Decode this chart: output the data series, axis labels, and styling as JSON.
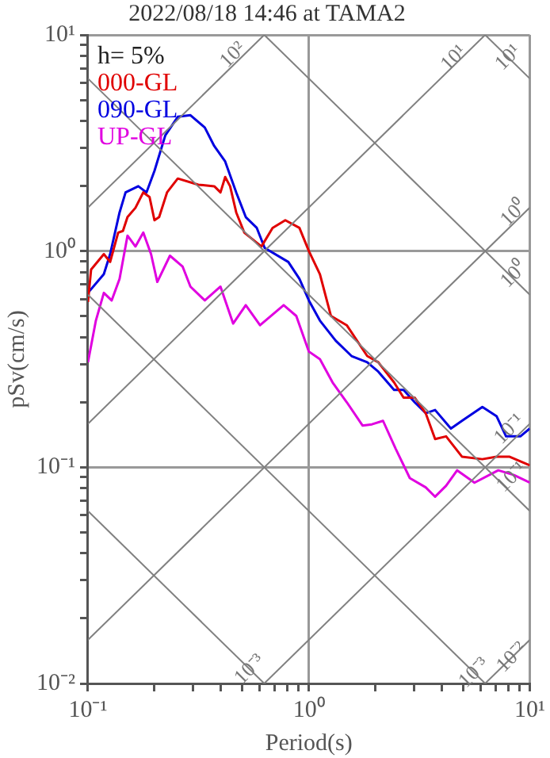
{
  "chart_data": {
    "type": "line",
    "title": "2022/08/18 14:46 at TAMA2",
    "xlabel": "Period(s)",
    "ylabel": "pSv(cm/s)",
    "legend_title": "h= 5%",
    "legend": "top left",
    "log": "xy",
    "grid": true,
    "marker": "none",
    "line_style": "solid",
    "xlim": [
      0.1,
      10
    ],
    "ylim": [
      0.01,
      10
    ],
    "xticks": [
      {
        "value": 0.1,
        "label": "10⁻¹"
      },
      {
        "value": 0.2,
        "label": null
      },
      {
        "value": 0.3,
        "label": null
      },
      {
        "value": 0.4,
        "label": null
      },
      {
        "value": 0.5,
        "label": null
      },
      {
        "value": 0.6,
        "label": null
      },
      {
        "value": 0.7,
        "label": null
      },
      {
        "value": 0.8,
        "label": null
      },
      {
        "value": 0.9,
        "label": null
      },
      {
        "value": 1,
        "label": "10⁰"
      },
      {
        "value": 2,
        "label": null
      },
      {
        "value": 3,
        "label": null
      },
      {
        "value": 4,
        "label": null
      },
      {
        "value": 5,
        "label": null
      },
      {
        "value": 6,
        "label": null
      },
      {
        "value": 7,
        "label": null
      },
      {
        "value": 8,
        "label": null
      },
      {
        "value": 9,
        "label": null
      },
      {
        "value": 10,
        "label": "10¹"
      }
    ],
    "yticks": [
      {
        "value": 0.01,
        "label": "10⁻²"
      },
      {
        "value": 0.02,
        "label": null
      },
      {
        "value": 0.03,
        "label": null
      },
      {
        "value": 0.04,
        "label": null
      },
      {
        "value": 0.05,
        "label": null
      },
      {
        "value": 0.06,
        "label": null
      },
      {
        "value": 0.07,
        "label": null
      },
      {
        "value": 0.08,
        "label": null
      },
      {
        "value": 0.09,
        "label": null
      },
      {
        "value": 0.1,
        "label": "10⁻¹"
      },
      {
        "value": 0.2,
        "label": null
      },
      {
        "value": 0.3,
        "label": null
      },
      {
        "value": 0.4,
        "label": null
      },
      {
        "value": 0.5,
        "label": null
      },
      {
        "value": 0.6,
        "label": null
      },
      {
        "value": 0.7,
        "label": null
      },
      {
        "value": 0.8,
        "label": null
      },
      {
        "value": 0.9,
        "label": null
      },
      {
        "value": 1,
        "label": "10⁰"
      },
      {
        "value": 2,
        "label": null
      },
      {
        "value": 3,
        "label": null
      },
      {
        "value": 4,
        "label": null
      },
      {
        "value": 5,
        "label": null
      },
      {
        "value": 6,
        "label": null
      },
      {
        "value": 7,
        "label": null
      },
      {
        "value": 8,
        "label": null
      },
      {
        "value": 9,
        "label": null
      },
      {
        "value": 10,
        "label": "10¹"
      }
    ],
    "annotations": [
      {
        "text": "10²",
        "x": 0.454,
        "y": 8.07
      },
      {
        "text": "10¹",
        "x": 4.54,
        "y": 7.8
      },
      {
        "text": "10¹",
        "x": 8,
        "y": 7.85
      },
      {
        "text": "10⁰",
        "x": 8.5,
        "y": 1.5
      },
      {
        "text": "10⁰",
        "x": 8.5,
        "y": 0.78
      },
      {
        "text": "10⁻¹",
        "x": 8.1,
        "y": 0.15
      },
      {
        "text": "10⁻¹",
        "x": 8.3,
        "y": 0.09
      },
      {
        "text": "10⁻³",
        "x": 0.54,
        "y": 0.0116
      },
      {
        "text": "10⁻³",
        "x": 5.6,
        "y": 0.0112
      },
      {
        "text": "10⁻²",
        "x": 8.3,
        "y": 0.0132
      }
    ],
    "series": [
      {
        "type": "line",
        "color": "#808080",
        "x": [
          0.1,
          0.628
        ],
        "values": [
          0.0628,
          0.01
        ]
      },
      {
        "type": "line",
        "color": "#808080",
        "x": [
          0.1,
          6.28
        ],
        "values": [
          0.628,
          0.01
        ]
      },
      {
        "type": "line",
        "color": "#808080",
        "x": [
          0.1,
          10
        ],
        "values": [
          6.28,
          0.0628
        ]
      },
      {
        "type": "line",
        "color": "#808080",
        "x": [
          0.628,
          10
        ],
        "values": [
          10,
          0.628
        ]
      },
      {
        "type": "line",
        "color": "#808080",
        "x": [
          6.28,
          10
        ],
        "values": [
          10,
          6.28
        ]
      },
      {
        "type": "line",
        "color": "#808080",
        "x": [
          6.28,
          10
        ],
        "values": [
          0.01,
          0.0159
        ]
      },
      {
        "type": "line",
        "color": "#808080",
        "x": [
          0.628,
          10
        ],
        "values": [
          0.01,
          0.159
        ]
      },
      {
        "type": "line",
        "color": "#808080",
        "x": [
          0.1,
          10
        ],
        "values": [
          0.0159,
          1.59
        ]
      },
      {
        "type": "line",
        "color": "#808080",
        "x": [
          0.1,
          6.28
        ],
        "values": [
          0.159,
          10
        ]
      },
      {
        "type": "line",
        "color": "#808080",
        "x": [
          0.1,
          0.628
        ],
        "values": [
          1.59,
          10
        ]
      },
      {
        "name": "000-GL",
        "color": "#e00000",
        "x": [
          0.1,
          0.1033,
          0.118,
          0.126,
          0.137,
          0.144,
          0.151,
          0.164,
          0.178,
          0.19,
          0.2,
          0.21,
          0.228,
          0.255,
          0.316,
          0.373,
          0.398,
          0.418,
          0.44,
          0.469,
          0.51,
          0.61,
          0.685,
          0.782,
          0.906,
          1.0,
          1.122,
          1.259,
          1.484,
          1.837,
          2.061,
          2.43,
          2.683,
          3.01,
          3.378,
          3.728,
          4.18,
          4.93,
          6.1,
          7.08,
          8.07,
          10
        ],
        "values": [
          0.581,
          0.821,
          0.968,
          0.891,
          1.218,
          1.239,
          1.436,
          1.585,
          1.868,
          1.778,
          1.389,
          1.436,
          1.868,
          2.166,
          2.028,
          1.995,
          1.868,
          2.2,
          1.995,
          1.509,
          1.218,
          1.05,
          1.28,
          1.389,
          1.28,
          1.0,
          0.782,
          0.501,
          0.454,
          0.327,
          0.306,
          0.247,
          0.21,
          0.21,
          0.178,
          0.135,
          0.139,
          0.112,
          0.109,
          0.112,
          0.112,
          0.102
        ]
      },
      {
        "name": "090-GL",
        "color": "#0000e0",
        "x": [
          0.1,
          0.118,
          0.126,
          0.139,
          0.148,
          0.169,
          0.184,
          0.2,
          0.224,
          0.255,
          0.291,
          0.338,
          0.373,
          0.418,
          0.469,
          0.518,
          0.581,
          0.631,
          0.807,
          0.906,
          1.0,
          1.122,
          1.322,
          1.56,
          1.837,
          2.061,
          2.43,
          2.683,
          3.01,
          3.378,
          3.728,
          4.394,
          4.93,
          6.1,
          7.08,
          7.81,
          9.06,
          10
        ],
        "values": [
          0.641,
          0.782,
          0.968,
          1.509,
          1.868,
          1.995,
          1.868,
          2.35,
          3.434,
          4.18,
          4.25,
          3.728,
          3.06,
          2.596,
          1.868,
          1.436,
          1.28,
          1.033,
          0.891,
          0.744,
          0.591,
          0.477,
          0.385,
          0.327,
          0.306,
          0.277,
          0.228,
          0.228,
          0.2,
          0.178,
          0.184,
          0.151,
          0.164,
          0.19,
          0.172,
          0.139,
          0.139,
          0.151
        ]
      },
      {
        "name": "UP-GL",
        "color": "#e000e0",
        "x": [
          0.1,
          0.1086,
          0.118,
          0.128,
          0.139,
          0.151,
          0.164,
          0.178,
          0.193,
          0.206,
          0.235,
          0.268,
          0.291,
          0.338,
          0.398,
          0.454,
          0.518,
          0.601,
          0.769,
          0.877,
          1.0,
          1.122,
          1.28,
          1.484,
          1.749,
          1.93,
          2.166,
          2.47,
          2.864,
          3.378,
          3.728,
          4.18,
          4.69,
          5.62,
          7.2,
          8.48,
          10
        ],
        "values": [
          0.306,
          0.477,
          0.641,
          0.591,
          0.744,
          1.179,
          1.05,
          1.218,
          0.968,
          0.72,
          0.952,
          0.849,
          0.685,
          0.591,
          0.685,
          0.462,
          0.562,
          0.454,
          0.562,
          0.501,
          0.343,
          0.316,
          0.247,
          0.2,
          0.156,
          0.158,
          0.164,
          0.122,
          0.0891,
          0.0808,
          0.0731,
          0.0821,
          0.0968,
          0.0849,
          0.0968,
          0.0921,
          0.0849
        ]
      }
    ]
  }
}
